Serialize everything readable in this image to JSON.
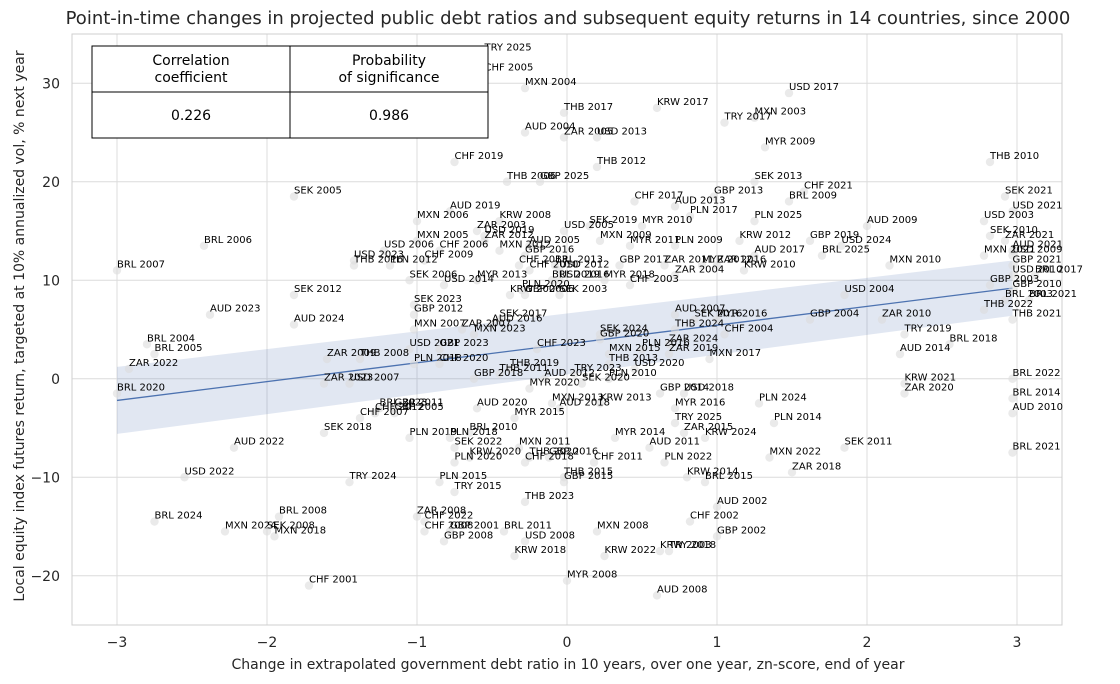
{
  "chart_data": {
    "type": "scatter",
    "title": "Point-in-time changes in projected public debt ratios and subsequent equity returns in 14 countries, since 2000",
    "xlabel": "Change in extrapolated government debt ratio in 10 years, over one year, zn-score, end of year",
    "ylabel": "Local equity index futures return, targeted at 10% annualized vol, % next year",
    "xlim": [
      -3.3,
      3.3
    ],
    "ylim": [
      -25,
      35
    ],
    "xticks": [
      -3,
      -2,
      -1,
      0,
      1,
      2,
      3
    ],
    "xtick_labels": [
      "−3",
      "−2",
      "−1",
      "0",
      "1",
      "2",
      "3"
    ],
    "yticks": [
      -20,
      -10,
      0,
      10,
      20,
      30
    ],
    "ytick_labels": [
      "−20",
      "−10",
      "0",
      "10",
      "20",
      "30"
    ],
    "grid": true,
    "regression": {
      "x": [
        -3,
        2.97
      ],
      "y": [
        -2.2,
        9.2
      ],
      "ci_low": [
        -5.6,
        6.4
      ],
      "ci_high": [
        1.2,
        12.0
      ]
    },
    "stats_table": {
      "headers": [
        "Correlation\ncoefficient",
        "Probability\nof significance"
      ],
      "values": [
        "0.226",
        "0.986"
      ]
    },
    "points": [
      {
        "label": "TRY 2025",
        "x": -0.55,
        "y": 33.0
      },
      {
        "label": "CHF 2005",
        "x": -0.55,
        "y": 31.0
      },
      {
        "label": "MXN 2004",
        "x": -0.28,
        "y": 29.5
      },
      {
        "label": "USD 2017",
        "x": 1.48,
        "y": 29.0
      },
      {
        "label": "KRW 2017",
        "x": 0.6,
        "y": 27.5
      },
      {
        "label": "THB 2017",
        "x": -0.02,
        "y": 27.0
      },
      {
        "label": "MXN 2003",
        "x": 1.25,
        "y": 26.5
      },
      {
        "label": "TRY 2017",
        "x": 1.05,
        "y": 26.0
      },
      {
        "label": "AUD 2004",
        "x": -0.28,
        "y": 25.0
      },
      {
        "label": "ZAR 2005",
        "x": -0.02,
        "y": 24.5
      },
      {
        "label": "USD 2013",
        "x": 0.2,
        "y": 24.5
      },
      {
        "label": "MYR 2009",
        "x": 1.32,
        "y": 23.5
      },
      {
        "label": "THB 2010",
        "x": 2.82,
        "y": 22.0
      },
      {
        "label": "CHF 2019",
        "x": -0.75,
        "y": 22.0
      },
      {
        "label": "THB 2012",
        "x": 0.2,
        "y": 21.5
      },
      {
        "label": "THB 2006",
        "x": -0.4,
        "y": 20.0
      },
      {
        "label": "GBP 2025",
        "x": -0.18,
        "y": 20.0
      },
      {
        "label": "SEK 2013",
        "x": 1.25,
        "y": 20.0
      },
      {
        "label": "CHF 2021",
        "x": 1.58,
        "y": 19.0
      },
      {
        "label": "GBP 2013",
        "x": 0.98,
        "y": 18.5
      },
      {
        "label": "SEK 2021",
        "x": 2.92,
        "y": 18.5
      },
      {
        "label": "SEK 2005",
        "x": -1.82,
        "y": 18.5
      },
      {
        "label": "BRL 2009",
        "x": 1.48,
        "y": 18.0
      },
      {
        "label": "CHF 2017",
        "x": 0.45,
        "y": 18.0
      },
      {
        "label": "AUD 2013",
        "x": 0.72,
        "y": 17.5
      },
      {
        "label": "USD 2021",
        "x": 2.97,
        "y": 17.0
      },
      {
        "label": "AUD 2019",
        "x": -0.78,
        "y": 17.0
      },
      {
        "label": "PLN 2017",
        "x": 0.82,
        "y": 16.5
      },
      {
        "label": "PLN 2025",
        "x": 1.25,
        "y": 16.0
      },
      {
        "label": "USD 2003",
        "x": 2.78,
        "y": 16.0
      },
      {
        "label": "MXN 2006",
        "x": -1.0,
        "y": 16.0
      },
      {
        "label": "KRW 2008",
        "x": -0.45,
        "y": 16.0
      },
      {
        "label": "SEK 2019",
        "x": 0.15,
        "y": 15.5
      },
      {
        "label": "MYR 2010",
        "x": 0.5,
        "y": 15.5
      },
      {
        "label": "AUD 2009",
        "x": 2.0,
        "y": 15.5
      },
      {
        "label": "ZAR 2003",
        "x": -0.6,
        "y": 15.0
      },
      {
        "label": "USD 2005",
        "x": -0.02,
        "y": 15.0
      },
      {
        "label": "USD 2019",
        "x": -0.55,
        "y": 14.5
      },
      {
        "label": "SEK 2010",
        "x": 2.82,
        "y": 14.5
      },
      {
        "label": "ZAR 2021",
        "x": 2.92,
        "y": 14.0
      },
      {
        "label": "GBP 2019",
        "x": 1.62,
        "y": 14.0
      },
      {
        "label": "KRW 2012",
        "x": 1.15,
        "y": 14.0
      },
      {
        "label": "MXN 2009",
        "x": 0.22,
        "y": 14.0
      },
      {
        "label": "MXN 2005",
        "x": -1.0,
        "y": 14.0
      },
      {
        "label": "ZAR 2012",
        "x": -0.55,
        "y": 14.0
      },
      {
        "label": "MYR 2011",
        "x": 0.42,
        "y": 13.5
      },
      {
        "label": "PLN 2009",
        "x": 0.72,
        "y": 13.5
      },
      {
        "label": "USD 2024",
        "x": 1.83,
        "y": 13.5
      },
      {
        "label": "AUD 2005",
        "x": -0.25,
        "y": 13.5
      },
      {
        "label": "AUD 2021",
        "x": 2.97,
        "y": 13.0
      },
      {
        "label": "USD 2006",
        "x": -1.22,
        "y": 13.0
      },
      {
        "label": "CHF 2006",
        "x": -0.85,
        "y": 13.0
      },
      {
        "label": "MXN 2012",
        "x": -0.45,
        "y": 13.0
      },
      {
        "label": "USD 2009",
        "x": 2.97,
        "y": 12.5
      },
      {
        "label": "BRL 2025",
        "x": 1.7,
        "y": 12.5
      },
      {
        "label": "MXN 2021",
        "x": 2.78,
        "y": 12.5
      },
      {
        "label": "AUD 2017",
        "x": 1.25,
        "y": 12.5
      },
      {
        "label": "GBP 2016",
        "x": -0.28,
        "y": 12.5
      },
      {
        "label": "BRL 2006",
        "x": -2.42,
        "y": 13.5
      },
      {
        "label": "USD 2023",
        "x": -1.42,
        "y": 12.0
      },
      {
        "label": "CHF 2009",
        "x": -0.95,
        "y": 12.0
      },
      {
        "label": "MXN 2010",
        "x": 2.15,
        "y": 11.5
      },
      {
        "label": "GBP 2021",
        "x": 2.97,
        "y": 11.5
      },
      {
        "label": "THB 2016",
        "x": -1.42,
        "y": 11.5
      },
      {
        "label": "PLN 2012",
        "x": -1.18,
        "y": 11.5
      },
      {
        "label": "CHF 2013",
        "x": -0.32,
        "y": 11.5
      },
      {
        "label": "BRL 2013",
        "x": -0.08,
        "y": 11.5
      },
      {
        "label": "GBP 2017",
        "x": 0.35,
        "y": 11.5
      },
      {
        "label": "ZAR 2011",
        "x": 0.65,
        "y": 11.5
      },
      {
        "label": "MYR 2012",
        "x": 0.9,
        "y": 11.5
      },
      {
        "label": "ZAR 2016",
        "x": 1.0,
        "y": 11.5
      },
      {
        "label": "KRW 2010",
        "x": 1.18,
        "y": 11.0
      },
      {
        "label": "BRL 2007",
        "x": -3.0,
        "y": 11.0
      },
      {
        "label": "CHF 2010",
        "x": -0.25,
        "y": 11.0
      },
      {
        "label": "USD 2012",
        "x": -0.05,
        "y": 11.0
      },
      {
        "label": "USD 2010",
        "x": 2.97,
        "y": 10.5
      },
      {
        "label": "BRL 2017",
        "x": 3.12,
        "y": 10.5
      },
      {
        "label": "ZAR 2004",
        "x": 0.72,
        "y": 10.5
      },
      {
        "label": "SEK 2006",
        "x": -1.05,
        "y": 10.0
      },
      {
        "label": "MYR 2013",
        "x": -0.6,
        "y": 10.0
      },
      {
        "label": "USD 2014",
        "x": -0.82,
        "y": 9.5
      },
      {
        "label": "USD 2016",
        "x": -0.05,
        "y": 10.0
      },
      {
        "label": "MYR 2018",
        "x": 0.25,
        "y": 10.0
      },
      {
        "label": "BRL 2019",
        "x": -0.1,
        "y": 10.0
      },
      {
        "label": "GBP 2003",
        "x": 2.82,
        "y": 9.5
      },
      {
        "label": "CHF 2003",
        "x": 0.42,
        "y": 9.5
      },
      {
        "label": "GBP 2010",
        "x": 2.97,
        "y": 9.0
      },
      {
        "label": "SEK 2012",
        "x": -1.82,
        "y": 8.5
      },
      {
        "label": "PLN 2020",
        "x": -0.3,
        "y": 9.0
      },
      {
        "label": "KRW 2006",
        "x": -0.38,
        "y": 8.5
      },
      {
        "label": "USD 2004",
        "x": 1.85,
        "y": 8.5
      },
      {
        "label": "GBP 2006",
        "x": -0.28,
        "y": 8.5
      },
      {
        "label": "SEK 2003",
        "x": -0.05,
        "y": 8.5
      },
      {
        "label": "BRL 2003",
        "x": 2.92,
        "y": 8.0
      },
      {
        "label": "BRL 2021",
        "x": 3.08,
        "y": 8.0
      },
      {
        "label": "SEK 2023",
        "x": -1.02,
        "y": 7.5
      },
      {
        "label": "THB 2022",
        "x": 2.78,
        "y": 7.0
      },
      {
        "label": "AUD 2023",
        "x": -2.38,
        "y": 6.5
      },
      {
        "label": "AUD 2007",
        "x": 0.72,
        "y": 6.5
      },
      {
        "label": "GBP 2012",
        "x": -1.02,
        "y": 6.5
      },
      {
        "label": "THB 2021",
        "x": 2.97,
        "y": 6.0
      },
      {
        "label": "SEK 2017",
        "x": -0.45,
        "y": 6.0
      },
      {
        "label": "GBP 2004",
        "x": 1.62,
        "y": 6.0
      },
      {
        "label": "ZAR 2010",
        "x": 2.1,
        "y": 6.0
      },
      {
        "label": "AUD 2024",
        "x": -1.82,
        "y": 5.5
      },
      {
        "label": "SEK 2016",
        "x": 0.85,
        "y": 6.0
      },
      {
        "label": "MYR 2016",
        "x": 1.0,
        "y": 6.0
      },
      {
        "label": "AUD 2016",
        "x": -0.5,
        "y": 5.5
      },
      {
        "label": "MXN 2007",
        "x": -1.02,
        "y": 5.0
      },
      {
        "label": "ZAR 2007",
        "x": -0.7,
        "y": 5.0
      },
      {
        "label": "THB 2024",
        "x": 0.72,
        "y": 5.0
      },
      {
        "label": "MXN 2023",
        "x": -0.62,
        "y": 4.5
      },
      {
        "label": "SEK 2024",
        "x": 0.22,
        "y": 4.5
      },
      {
        "label": "TRY 2019",
        "x": 2.25,
        "y": 4.5
      },
      {
        "label": "CHF 2004",
        "x": 1.05,
        "y": 4.5
      },
      {
        "label": "GBP 2020",
        "x": 0.22,
        "y": 4.0
      },
      {
        "label": "ZAR 2024",
        "x": 0.68,
        "y": 3.5
      },
      {
        "label": "BRL 2018",
        "x": 2.55,
        "y": 3.5
      },
      {
        "label": "BRL 2004",
        "x": -2.8,
        "y": 3.5
      },
      {
        "label": "USD 2021",
        "x": -1.05,
        "y": 3.0
      },
      {
        "label": "GBP 2023",
        "x": -0.85,
        "y": 3.0
      },
      {
        "label": "CHF 2023",
        "x": -0.2,
        "y": 3.0
      },
      {
        "label": "PLN 2016",
        "x": 0.5,
        "y": 3.0
      },
      {
        "label": "BRL 2005",
        "x": -2.75,
        "y": 2.5
      },
      {
        "label": "AUD 2014",
        "x": 2.22,
        "y": 2.5
      },
      {
        "label": "MXN 2015",
        "x": 0.28,
        "y": 2.5
      },
      {
        "label": "ZAR 2019",
        "x": 0.68,
        "y": 2.5
      },
      {
        "label": "ZAR 2009",
        "x": -1.6,
        "y": 2.0
      },
      {
        "label": "THB 2008",
        "x": -1.38,
        "y": 2.0
      },
      {
        "label": "MXN 2017",
        "x": 0.95,
        "y": 2.0
      },
      {
        "label": "PLN 2018",
        "x": -1.02,
        "y": 1.5
      },
      {
        "label": "CHF 2020",
        "x": -0.85,
        "y": 1.5
      },
      {
        "label": "THB 2013",
        "x": 0.28,
        "y": 1.5
      },
      {
        "label": "ZAR 2022",
        "x": -2.92,
        "y": 1.0
      },
      {
        "label": "THB 2019",
        "x": -0.38,
        "y": 1.0
      },
      {
        "label": "USD 2020",
        "x": 0.45,
        "y": 1.0
      },
      {
        "label": "TRY 2023",
        "x": 0.05,
        "y": 0.5
      },
      {
        "label": "THB 2011",
        "x": -0.45,
        "y": 0.5
      },
      {
        "label": "BRL 2022",
        "x": 2.97,
        "y": 0.0
      },
      {
        "label": "GBP 2018",
        "x": -0.62,
        "y": 0.0
      },
      {
        "label": "AUD 2012",
        "x": -0.15,
        "y": 0.0
      },
      {
        "label": "KRW 2021",
        "x": 2.25,
        "y": -0.5
      },
      {
        "label": "PLN 2010",
        "x": 0.28,
        "y": 0.0
      },
      {
        "label": "ZAR 2023",
        "x": -1.62,
        "y": -0.5
      },
      {
        "label": "USD 2007",
        "x": -1.45,
        "y": -0.5
      },
      {
        "label": "MYR 2020",
        "x": -0.25,
        "y": -1.0
      },
      {
        "label": "SEK 2020",
        "x": 0.1,
        "y": -0.5
      },
      {
        "label": "BRL 2020",
        "x": -3.0,
        "y": -1.5
      },
      {
        "label": "ZAR 2020",
        "x": 2.25,
        "y": -1.5
      },
      {
        "label": "USD 2018",
        "x": 0.78,
        "y": -1.5
      },
      {
        "label": "GBP 2014",
        "x": 0.62,
        "y": -1.5
      },
      {
        "label": "BRL 2014",
        "x": 2.97,
        "y": -2.0
      },
      {
        "label": "PLN 2024",
        "x": 1.28,
        "y": -2.5
      },
      {
        "label": "MXN 2013",
        "x": -0.1,
        "y": -2.5
      },
      {
        "label": "KRW 2013",
        "x": 0.22,
        "y": -2.5
      },
      {
        "label": "AUD 2018",
        "x": -0.05,
        "y": -3.0
      },
      {
        "label": "AUD 2020",
        "x": -0.6,
        "y": -3.0
      },
      {
        "label": "MYR 2016",
        "x": 0.72,
        "y": -3.0
      },
      {
        "label": "BRL 2023",
        "x": -1.25,
        "y": -3.0
      },
      {
        "label": "GBP 2011",
        "x": -1.15,
        "y": -3.0
      },
      {
        "label": "CHF 2012",
        "x": -1.28,
        "y": -3.5
      },
      {
        "label": "GBP 2005",
        "x": -1.15,
        "y": -3.5
      },
      {
        "label": "AUD 2010",
        "x": 2.97,
        "y": -3.5
      },
      {
        "label": "MYR 2015",
        "x": -0.35,
        "y": -4.0
      },
      {
        "label": "CHF 2007",
        "x": -1.38,
        "y": -4.0
      },
      {
        "label": "TRY 2025",
        "x": 0.72,
        "y": -4.5
      },
      {
        "label": "PLN 2014",
        "x": 1.38,
        "y": -4.5
      },
      {
        "label": "ZAR 2015",
        "x": 0.78,
        "y": -5.5
      },
      {
        "label": "SEK 2018",
        "x": -1.62,
        "y": -5.5
      },
      {
        "label": "MYR 2014",
        "x": 0.32,
        "y": -6.0
      },
      {
        "label": "KRW 2024",
        "x": 0.92,
        "y": -6.0
      },
      {
        "label": "BRL 2010",
        "x": -0.65,
        "y": -5.5
      },
      {
        "label": "PLN 2019",
        "x": -1.05,
        "y": -6.0
      },
      {
        "label": "PLN 2018",
        "x": -0.78,
        "y": -6.0
      },
      {
        "label": "AUD 2022",
        "x": -2.22,
        "y": -7.0
      },
      {
        "label": "SEK 2022",
        "x": -0.75,
        "y": -7.0
      },
      {
        "label": "MXN 2011",
        "x": -0.32,
        "y": -7.0
      },
      {
        "label": "AUD 2011",
        "x": 0.55,
        "y": -7.0
      },
      {
        "label": "SEK 2011",
        "x": 1.85,
        "y": -7.0
      },
      {
        "label": "MXN 2022",
        "x": 1.35,
        "y": -8.0
      },
      {
        "label": "KRW 2020",
        "x": -0.65,
        "y": -8.0
      },
      {
        "label": "THB 2020",
        "x": -0.25,
        "y": -8.0
      },
      {
        "label": "GBP 2016",
        "x": -0.12,
        "y": -8.0
      },
      {
        "label": "PLN 2020",
        "x": -0.75,
        "y": -8.5
      },
      {
        "label": "CHF 2018",
        "x": -0.28,
        "y": -8.5
      },
      {
        "label": "CHF 2011",
        "x": 0.18,
        "y": -8.5
      },
      {
        "label": "PLN 2022",
        "x": 0.65,
        "y": -8.5
      },
      {
        "label": "BRL 2021",
        "x": 2.97,
        "y": -7.5
      },
      {
        "label": "ZAR 2018",
        "x": 1.5,
        "y": -9.5
      },
      {
        "label": "USD 2022",
        "x": -2.55,
        "y": -10.0
      },
      {
        "label": "TRY 2024",
        "x": -1.45,
        "y": -10.5
      },
      {
        "label": "THB 2015",
        "x": -0.02,
        "y": -10.0
      },
      {
        "label": "GBP 2015",
        "x": -0.02,
        "y": -10.5
      },
      {
        "label": "KRW 2014",
        "x": 0.8,
        "y": -10.0
      },
      {
        "label": "BRL 2015",
        "x": 0.92,
        "y": -10.5
      },
      {
        "label": "PLN 2015",
        "x": -0.85,
        "y": -10.5
      },
      {
        "label": "TRY 2015",
        "x": -0.75,
        "y": -11.5
      },
      {
        "label": "THB 2023",
        "x": -0.28,
        "y": -12.5
      },
      {
        "label": "AUD 2002",
        "x": 1.0,
        "y": -13.0
      },
      {
        "label": "BRL 2008",
        "x": -1.92,
        "y": -14.0
      },
      {
        "label": "ZAR 2008",
        "x": -1.0,
        "y": -14.0
      },
      {
        "label": "BRL 2024",
        "x": -2.75,
        "y": -14.5
      },
      {
        "label": "CHF 2022",
        "x": -0.95,
        "y": -14.5
      },
      {
        "label": "CHF 2002",
        "x": 0.82,
        "y": -14.5
      },
      {
        "label": "BRL 2011",
        "x": -0.42,
        "y": -15.5
      },
      {
        "label": "CHF 2008",
        "x": -0.95,
        "y": -15.5
      },
      {
        "label": "GBP 2001",
        "x": -0.78,
        "y": -15.5
      },
      {
        "label": "MXN 2024",
        "x": -2.28,
        "y": -15.5
      },
      {
        "label": "SEK 2008",
        "x": -2.0,
        "y": -15.5
      },
      {
        "label": "MXN 2018",
        "x": -1.95,
        "y": -16.0
      },
      {
        "label": "MXN 2008",
        "x": 0.2,
        "y": -15.5
      },
      {
        "label": "GBP 2002",
        "x": 1.0,
        "y": -16.0
      },
      {
        "label": "GBP 2008",
        "x": -0.82,
        "y": -16.5
      },
      {
        "label": "USD 2008",
        "x": -0.28,
        "y": -16.5
      },
      {
        "label": "KRW 2003",
        "x": 0.62,
        "y": -17.5
      },
      {
        "label": "TRY 2018",
        "x": 0.68,
        "y": -17.5
      },
      {
        "label": "KRW 2018",
        "x": -0.35,
        "y": -18.0
      },
      {
        "label": "KRW 2022",
        "x": 0.25,
        "y": -18.0
      },
      {
        "label": "MYR 2008",
        "x": 0.0,
        "y": -20.5
      },
      {
        "label": "CHF 2001",
        "x": -1.72,
        "y": -21.0
      },
      {
        "label": "AUD 2008",
        "x": 0.6,
        "y": -22.0
      }
    ]
  }
}
